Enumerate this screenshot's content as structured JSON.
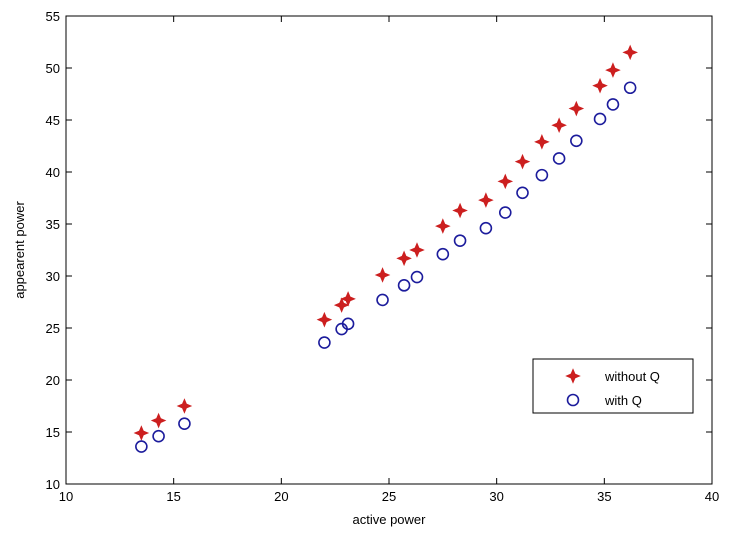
{
  "chart_data": {
    "type": "scatter",
    "title": "",
    "xlabel": "active power",
    "ylabel": "appearent power",
    "xlim": [
      10,
      40
    ],
    "ylim": [
      10,
      55
    ],
    "xticks": [
      10,
      15,
      20,
      25,
      30,
      35,
      40
    ],
    "yticks": [
      10,
      15,
      20,
      25,
      30,
      35,
      40,
      45,
      50,
      55
    ],
    "xtick_labels": [
      "10",
      "15",
      "20",
      "25",
      "30",
      "35",
      "40"
    ],
    "ytick_labels": [
      "10",
      "15",
      "20",
      "25",
      "30",
      "35",
      "40",
      "45",
      "50",
      "55"
    ],
    "grid": false,
    "legend_position": "lower-right",
    "series": [
      {
        "name": "without Q",
        "marker": "star",
        "color": "#cc1f1f",
        "x": [
          13.5,
          14.3,
          15.5,
          22.0,
          22.8,
          23.1,
          24.7,
          25.7,
          26.3,
          27.5,
          28.3,
          29.5,
          30.4,
          31.2,
          32.1,
          32.9,
          33.7,
          34.8,
          35.4,
          36.2
        ],
        "y": [
          14.9,
          16.1,
          17.5,
          25.8,
          27.2,
          27.8,
          30.1,
          31.7,
          32.5,
          34.8,
          36.3,
          37.3,
          39.1,
          41.0,
          42.9,
          44.5,
          46.1,
          48.3,
          49.8,
          51.5
        ]
      },
      {
        "name": "with Q",
        "marker": "circle",
        "color": "#1c1c9c",
        "x": [
          13.5,
          14.3,
          15.5,
          22.0,
          22.8,
          23.1,
          24.7,
          25.7,
          26.3,
          27.5,
          28.3,
          29.5,
          30.4,
          31.2,
          32.1,
          32.9,
          33.7,
          34.8,
          35.4,
          36.2
        ],
        "y": [
          13.6,
          14.6,
          15.8,
          23.6,
          24.9,
          25.4,
          27.7,
          29.1,
          29.9,
          32.1,
          33.4,
          34.6,
          36.1,
          38.0,
          39.7,
          41.3,
          43.0,
          45.1,
          46.5,
          48.1
        ]
      }
    ]
  }
}
